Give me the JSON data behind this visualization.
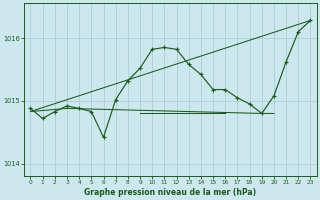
{
  "bg_color": "#cce8ee",
  "grid_color": "#aacfd8",
  "line_color": "#1a5c1a",
  "xlabel": "Graphe pression niveau de la mer (hPa)",
  "ylim": [
    1013.8,
    1016.55
  ],
  "xlim": [
    -0.5,
    23.5
  ],
  "yticks": [
    1014,
    1015,
    1016
  ],
  "xticks": [
    0,
    1,
    2,
    3,
    4,
    5,
    6,
    7,
    8,
    9,
    10,
    11,
    12,
    13,
    14,
    15,
    16,
    17,
    18,
    19,
    20,
    21,
    22,
    23
  ],
  "series1_x": [
    0,
    1,
    2,
    3,
    4,
    5,
    6,
    7,
    8,
    9,
    10,
    11,
    12,
    13,
    14,
    15,
    16,
    17,
    18,
    19,
    20,
    21,
    22,
    23
  ],
  "series1_y": [
    1014.88,
    1014.72,
    1014.83,
    1014.92,
    1014.88,
    1014.83,
    1014.42,
    1015.02,
    1015.32,
    1015.52,
    1015.82,
    1015.85,
    1015.82,
    1015.58,
    1015.42,
    1015.18,
    1015.18,
    1015.05,
    1014.95,
    1014.8,
    1015.08,
    1015.62,
    1016.1,
    1016.28
  ],
  "series2_x": [
    0,
    23
  ],
  "series2_y": [
    1014.83,
    1016.28
  ],
  "series3_x": [
    0,
    3,
    19,
    20
  ],
  "series3_y": [
    1014.83,
    1014.88,
    1014.8,
    1014.8
  ],
  "series4_x": [
    9,
    16
  ],
  "series4_y": [
    1014.8,
    1014.8
  ]
}
